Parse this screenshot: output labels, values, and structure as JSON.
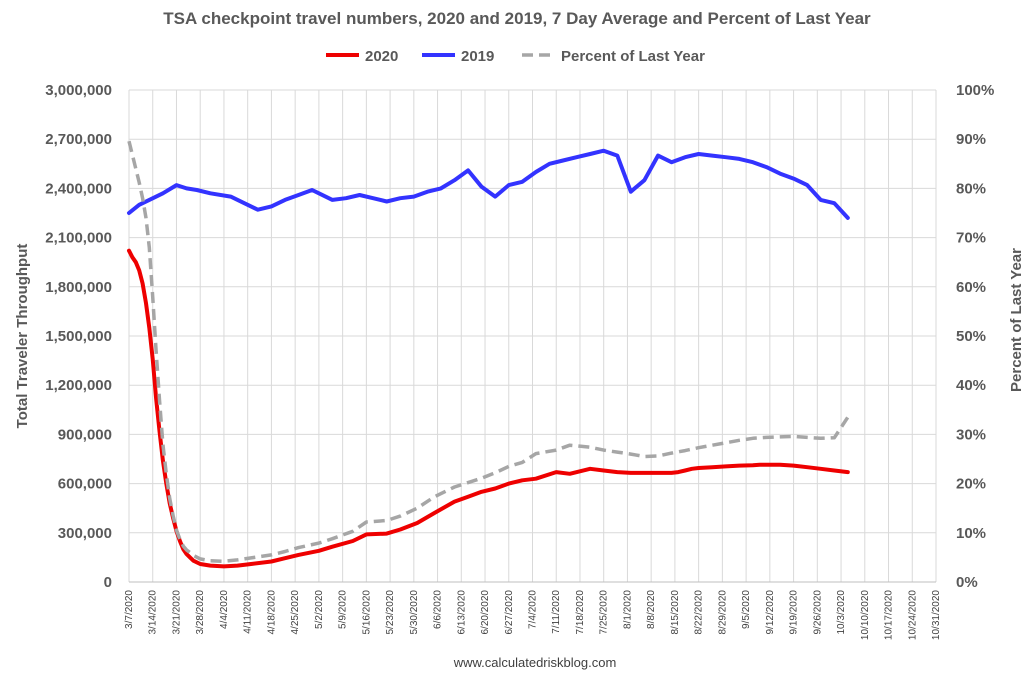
{
  "chart_data": {
    "type": "line",
    "title": "TSA checkpoint travel numbers, 2020 and 2019, 7 Day Average and Percent of Last Year",
    "ylabel": "Total Traveler Throughput",
    "y2label": "Percent of Last Year",
    "ylim": [
      0,
      3000000
    ],
    "y2lim": [
      0,
      100
    ],
    "yticks": [
      "0",
      "300,000",
      "600,000",
      "900,000",
      "1,200,000",
      "1,500,000",
      "1,800,000",
      "2,100,000",
      "2,400,000",
      "2,700,000",
      "3,000,000"
    ],
    "y2ticks": [
      "0%",
      "10%",
      "20%",
      "30%",
      "40%",
      "50%",
      "60%",
      "70%",
      "80%",
      "90%",
      "100%"
    ],
    "xlim_days": [
      0,
      238
    ],
    "xticks": [
      "3/7/2020",
      "3/14/2020",
      "3/21/2020",
      "3/28/2020",
      "4/4/2020",
      "4/11/2020",
      "4/18/2020",
      "4/25/2020",
      "5/2/2020",
      "5/9/2020",
      "5/16/2020",
      "5/23/2020",
      "5/30/2020",
      "6/6/2020",
      "6/13/2020",
      "6/20/2020",
      "6/27/2020",
      "7/4/2020",
      "7/11/2020",
      "7/18/2020",
      "7/25/2020",
      "8/1/2020",
      "8/8/2020",
      "8/15/2020",
      "8/22/2020",
      "8/29/2020",
      "9/5/2020",
      "9/12/2020",
      "9/19/2020",
      "9/26/2020",
      "10/3/2020",
      "10/10/2020",
      "10/17/2020",
      "10/24/2020",
      "10/31/2020"
    ],
    "grid": true,
    "legend_position": "top",
    "series": [
      {
        "name": "2020",
        "axis": "left",
        "color": "#ee0000",
        "dash": false,
        "x": [
          0,
          1,
          2,
          3,
          4,
          5,
          6,
          7,
          8,
          9,
          10,
          11,
          12,
          13,
          14,
          15,
          16,
          17,
          18,
          19,
          21,
          24,
          28,
          32,
          36,
          42,
          46,
          50,
          56,
          60,
          66,
          70,
          76,
          80,
          85,
          90,
          96,
          100,
          104,
          108,
          112,
          116,
          120,
          126,
          130,
          136,
          140,
          144,
          148,
          150,
          152,
          153,
          155,
          157,
          160,
          162,
          164,
          166,
          168,
          172,
          176,
          180,
          184,
          186,
          188,
          192,
          196,
          200,
          204,
          208,
          212,
          214,
          216,
          217,
          219,
          221,
          222,
          224,
          226,
          227,
          229,
          231,
          234,
          236,
          238,
          240,
          242,
          244,
          246,
          248,
          250,
          252,
          254,
          256,
          258,
          260,
          262,
          264,
          266,
          268,
          270,
          272,
          274,
          276,
          278,
          280,
          282,
          284,
          286,
          288,
          290,
          292,
          294,
          296,
          298,
          300,
          302,
          304,
          306,
          308,
          309,
          310
        ],
        "values": [
          2020000,
          1980000,
          1950000,
          1900000,
          1820000,
          1700000,
          1550000,
          1360000,
          1120000,
          920000,
          740000,
          600000,
          480000,
          390000,
          310000,
          250000,
          200000,
          170000,
          150000,
          130000,
          110000,
          100000,
          95000,
          100000,
          110000,
          125000,
          145000,
          165000,
          190000,
          215000,
          250000,
          290000,
          295000,
          320000,
          360000,
          420000,
          490000,
          520000,
          550000,
          570000,
          600000,
          620000,
          630000,
          670000,
          660000,
          690000,
          680000,
          670000,
          665000,
          665000,
          665000,
          665000,
          665000,
          665000,
          665000,
          670000,
          680000,
          690000,
          695000,
          700000,
          705000,
          710000,
          712000,
          715000,
          715000,
          715000,
          710000,
          700000,
          690000,
          680000,
          670000,
          665000,
          670000,
          680000,
          700000,
          730000,
          720000,
          760000,
          780000,
          770000,
          740000,
          730000,
          680000,
          690000,
          700000,
          705000,
          710000,
          715000,
          720000,
          725000,
          730000,
          735000,
          740000,
          745000,
          748000,
          750000,
          752000,
          754000,
          755000,
          756000,
          757000,
          758000,
          759000,
          760000,
          761000,
          762000,
          763000,
          764000,
          765000,
          766000,
          767000,
          768000,
          769000,
          770000,
          771000,
          772000,
          773000,
          774000,
          775000,
          776000,
          777000,
          778000
        ]
      },
      {
        "name": "2019",
        "axis": "left",
        "color": "#3333ff",
        "dash": false,
        "x": [
          0,
          3,
          6,
          10,
          14,
          17,
          20,
          24,
          30,
          34,
          38,
          42,
          46,
          50,
          54,
          56,
          60,
          64,
          68,
          72,
          76,
          80,
          84,
          88,
          92,
          96,
          100,
          104,
          108,
          112,
          116,
          120,
          124,
          128,
          132,
          136,
          140,
          144,
          148,
          152,
          156,
          160,
          164,
          168,
          172,
          176,
          180,
          184,
          188,
          192,
          196,
          200,
          204,
          208,
          212,
          216,
          218,
          220,
          222,
          224,
          226,
          228,
          230,
          232,
          234,
          236,
          238,
          240,
          244,
          248,
          252,
          256,
          260,
          264
        ],
        "values": [
          2250000,
          2300000,
          2330000,
          2370000,
          2420000,
          2400000,
          2390000,
          2370000,
          2350000,
          2310000,
          2270000,
          2290000,
          2330000,
          2360000,
          2390000,
          2370000,
          2330000,
          2340000,
          2360000,
          2340000,
          2320000,
          2340000,
          2350000,
          2380000,
          2400000,
          2450000,
          2510000,
          2410000,
          2350000,
          2420000,
          2440000,
          2500000,
          2550000,
          2570000,
          2590000,
          2610000,
          2630000,
          2600000,
          2380000,
          2450000,
          2600000,
          2560000,
          2590000,
          2610000,
          2600000,
          2590000,
          2580000,
          2560000,
          2530000,
          2490000,
          2460000,
          2420000,
          2330000,
          2310000,
          2220000,
          2100000,
          2040000,
          2090000,
          2080000,
          2100000,
          2160000,
          2200000,
          2230000,
          2250000,
          2270000,
          2290000,
          2300000,
          2310000,
          2280000,
          2260000,
          2240000,
          2260000,
          2270000,
          2280000
        ]
      },
      {
        "name": "Percent of Last Year",
        "axis": "right",
        "color": "#a6a6a6",
        "dash": true,
        "x": [
          0,
          1,
          2,
          3,
          4,
          5,
          6,
          7,
          8,
          9,
          10,
          11,
          12,
          13,
          14,
          15,
          16,
          17,
          18,
          19,
          21,
          24,
          28,
          32,
          36,
          42,
          46,
          50,
          56,
          60,
          66,
          70,
          76,
          80,
          85,
          90,
          96,
          100,
          104,
          108,
          112,
          116,
          120,
          126,
          130,
          136,
          140,
          144,
          148,
          152,
          156,
          160,
          164,
          168,
          172,
          176,
          180,
          184,
          188,
          192,
          196,
          200,
          204,
          208,
          212,
          216,
          218,
          220,
          222,
          224,
          226,
          228,
          230,
          232,
          234,
          236,
          238,
          240,
          244,
          248,
          252,
          256,
          260,
          264
        ],
        "values": [
          89.6,
          86.8,
          84.0,
          81.2,
          78.0,
          74.0,
          68.0,
          58.0,
          47.0,
          37.0,
          28.0,
          22.0,
          17.0,
          13.5,
          10.5,
          8.7,
          7.3,
          6.5,
          6.0,
          5.4,
          4.7,
          4.3,
          4.2,
          4.5,
          4.9,
          5.5,
          6.2,
          7.0,
          7.9,
          8.8,
          10.3,
          12.2,
          12.5,
          13.4,
          15.0,
          17.3,
          19.3,
          20.2,
          21.1,
          22.2,
          23.5,
          24.3,
          26.1,
          26.8,
          27.8,
          27.4,
          26.8,
          26.4,
          26.0,
          25.5,
          25.6,
          26.2,
          26.7,
          27.3,
          27.8,
          28.3,
          28.8,
          29.2,
          29.4,
          29.5,
          29.6,
          29.4,
          29.2,
          29.3,
          33.5,
          36.0,
          37.5,
          37.0,
          35.6,
          34.3,
          33.0,
          31.4,
          30.3,
          30.4,
          30.7,
          31.0,
          31.3,
          31.4,
          31.8,
          32.3,
          32.6,
          33.0,
          33.3,
          33.6
        ]
      }
    ],
    "source": "www.calculatedriskblog.com"
  }
}
